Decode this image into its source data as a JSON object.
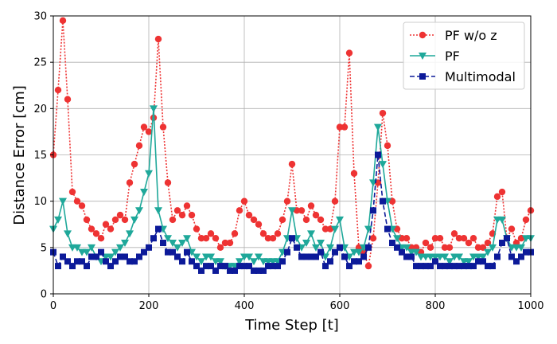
{
  "chart_data": {
    "type": "line",
    "xlabel": "Time Step [t]",
    "ylabel": "Distance Error [cm]",
    "xlim": [
      0,
      1000
    ],
    "ylim": [
      0,
      30
    ],
    "x_ticks": [
      0,
      200,
      400,
      600,
      800,
      1000
    ],
    "y_ticks": [
      0,
      5,
      10,
      15,
      20,
      25,
      30
    ],
    "grid": true,
    "legend_position": "top-right",
    "x": [
      0,
      10,
      20,
      30,
      40,
      50,
      60,
      70,
      80,
      90,
      100,
      110,
      120,
      130,
      140,
      150,
      160,
      170,
      180,
      190,
      200,
      210,
      220,
      230,
      240,
      250,
      260,
      270,
      280,
      290,
      300,
      310,
      320,
      330,
      340,
      350,
      360,
      370,
      380,
      390,
      400,
      410,
      420,
      430,
      440,
      450,
      460,
      470,
      480,
      490,
      500,
      510,
      520,
      530,
      540,
      550,
      560,
      570,
      580,
      590,
      600,
      610,
      620,
      630,
      640,
      650,
      660,
      670,
      680,
      690,
      700,
      710,
      720,
      730,
      740,
      750,
      760,
      770,
      780,
      790,
      800,
      810,
      820,
      830,
      840,
      850,
      860,
      870,
      880,
      890,
      900,
      910,
      920,
      930,
      940,
      950,
      960,
      970,
      980,
      990,
      1000
    ],
    "series": [
      {
        "name": "PF w/o z",
        "color": "#ee3333",
        "linestyle": "dotted",
        "marker": "circle",
        "values": [
          15,
          22,
          29.5,
          21,
          11,
          10,
          9.5,
          8,
          7,
          6.5,
          6,
          7.5,
          7,
          8,
          8.5,
          8,
          12,
          14,
          16,
          18,
          17.5,
          19,
          27.5,
          18,
          12,
          8,
          9,
          8.5,
          9.5,
          8.5,
          7,
          6,
          6,
          6.5,
          6,
          5,
          5.5,
          5.5,
          6.5,
          9,
          10,
          8.5,
          8,
          7.5,
          6.5,
          6,
          6,
          6.5,
          8,
          10,
          14,
          9,
          9,
          8,
          9.5,
          8.5,
          8,
          7,
          7,
          10,
          18,
          18,
          26,
          13,
          5,
          4.5,
          3,
          6,
          12,
          19.5,
          16,
          10,
          7,
          6,
          6,
          5,
          5,
          4.5,
          5.5,
          5,
          6,
          6,
          5,
          5,
          6.5,
          6,
          6,
          5.5,
          6,
          5,
          5,
          5.5,
          6.5,
          10.5,
          11,
          6,
          7,
          5.5,
          6,
          8,
          9
        ]
      },
      {
        "name": "PF",
        "color": "#1fa89a",
        "linestyle": "solid",
        "marker": "triangle-down",
        "values": [
          7,
          8,
          10,
          6.5,
          5,
          5,
          4.5,
          4.5,
          5,
          4,
          3.5,
          4,
          4,
          4.5,
          5,
          5.5,
          6.5,
          8,
          9,
          11,
          13,
          20,
          9,
          7,
          6,
          5.5,
          5,
          5.5,
          6,
          4.5,
          4,
          3.5,
          4,
          4,
          3.5,
          3.5,
          3,
          3,
          3,
          3.5,
          4,
          4,
          3.5,
          4,
          3.5,
          3.5,
          3.5,
          3.5,
          4.5,
          6,
          9,
          6,
          5,
          5.5,
          6.5,
          5,
          5.5,
          4,
          5,
          7,
          8,
          5,
          4,
          4.5,
          4.5,
          5,
          7,
          12,
          18,
          14,
          10,
          7,
          6,
          5,
          5,
          4.5,
          4.5,
          4,
          4,
          4,
          4,
          4,
          4,
          3.5,
          4,
          4,
          3.5,
          3.5,
          4,
          4,
          4,
          4.5,
          5,
          8,
          8,
          6,
          5,
          5,
          5,
          6,
          6
        ]
      },
      {
        "name": "Multimodal",
        "color": "#0c1a99",
        "linestyle": "dashed",
        "marker": "square",
        "values": [
          4.5,
          3,
          4,
          3.5,
          3,
          3.5,
          3.5,
          3,
          4,
          4,
          4.5,
          3.5,
          3,
          3.5,
          4,
          4,
          3.5,
          3.5,
          4,
          4.5,
          5,
          6,
          7,
          5.5,
          4.5,
          4.5,
          4,
          3.5,
          4.5,
          3.5,
          3,
          2.5,
          3,
          3,
          2.5,
          3,
          3,
          2.5,
          2.5,
          3,
          3,
          3,
          2.5,
          2.5,
          2.5,
          3,
          3,
          3,
          3.5,
          4.5,
          6,
          5,
          4,
          4,
          4,
          4,
          4.5,
          3,
          3.5,
          4.5,
          5,
          4,
          3,
          3.5,
          3.5,
          4,
          5,
          9,
          15,
          10,
          7,
          5.5,
          5,
          4.5,
          4,
          4,
          3,
          3,
          3,
          3,
          3.5,
          3,
          3,
          3,
          3,
          3,
          3,
          3,
          3,
          3.5,
          3.5,
          3,
          3,
          4,
          5.5,
          6,
          4,
          3.5,
          4,
          4.5,
          4.5
        ]
      }
    ]
  }
}
